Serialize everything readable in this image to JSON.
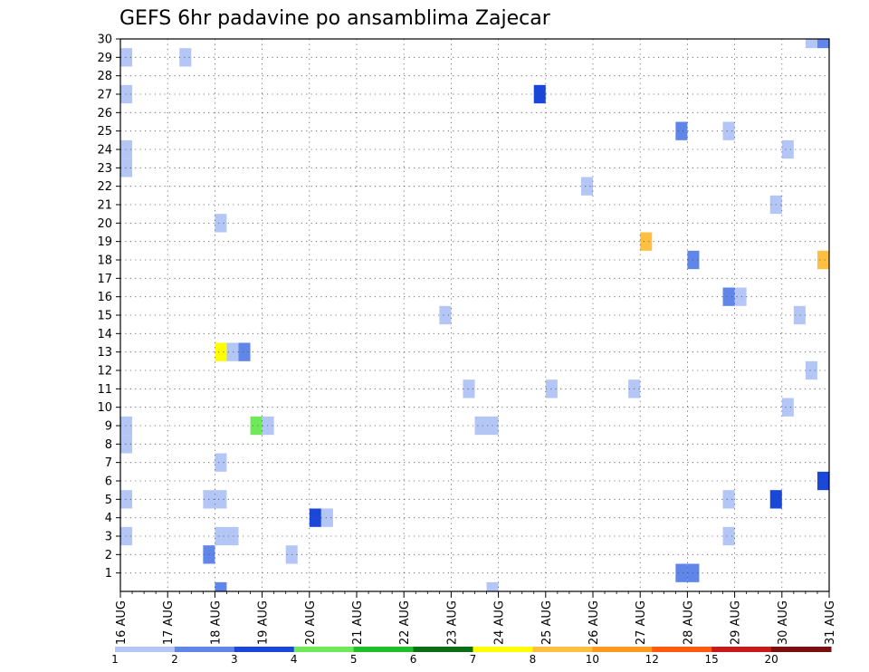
{
  "chart_data": {
    "type": "heatmap",
    "title": "GEFS 6hr padavine po ansamblima Zajecar",
    "xlabel": "",
    "ylabel": "",
    "x_tick_labels": [
      "16 AUG",
      "17 AUG",
      "18 AUG",
      "19 AUG",
      "20 AUG",
      "21 AUG",
      "22 AUG",
      "23 AUG",
      "24 AUG",
      "25 AUG",
      "26 AUG",
      "27 AUG",
      "28 AUG",
      "29 AUG",
      "30 AUG",
      "31 AUG"
    ],
    "xlim_days": [
      0,
      15
    ],
    "ylim": [
      0,
      30
    ],
    "y_tick_labels": [
      "1",
      "2",
      "3",
      "4",
      "5",
      "6",
      "7",
      "8",
      "9",
      "10",
      "11",
      "12",
      "13",
      "14",
      "15",
      "16",
      "17",
      "18",
      "19",
      "20",
      "21",
      "22",
      "23",
      "24",
      "25",
      "26",
      "27",
      "28",
      "29",
      "30"
    ],
    "grid": true,
    "colorbar": {
      "tick_labels": [
        "1",
        "2",
        "3",
        "4",
        "5",
        "6",
        "7",
        "8",
        "10",
        "12",
        "15",
        "20"
      ],
      "colors": [
        "#b3c6f5",
        "#5f86e8",
        "#1b47d8",
        "#6fe85a",
        "#1fbf2a",
        "#0a6e14",
        "#ffff00",
        "#ffbf40",
        "#ff9a20",
        "#ff5a10",
        "#c81a1a",
        "#7a0f0f"
      ]
    },
    "cells": [
      {
        "day": 0.0,
        "member": 29,
        "level": 1
      },
      {
        "day": 1.25,
        "member": 29,
        "level": 1
      },
      {
        "day": 0.0,
        "member": 27,
        "level": 1
      },
      {
        "day": 0.0,
        "member": 24,
        "level": 1
      },
      {
        "day": 0.0,
        "member": 23,
        "level": 1
      },
      {
        "day": 0.0,
        "member": 9,
        "level": 1
      },
      {
        "day": 0.0,
        "member": 8,
        "level": 1
      },
      {
        "day": 0.0,
        "member": 5,
        "level": 1
      },
      {
        "day": 0.0,
        "member": 3,
        "level": 1
      },
      {
        "day": 2.0,
        "member": 20,
        "level": 1
      },
      {
        "day": 2.0,
        "member": 13,
        "level": 7
      },
      {
        "day": 2.25,
        "member": 13,
        "level": 1
      },
      {
        "day": 2.5,
        "member": 13,
        "level": 2
      },
      {
        "day": 2.0,
        "member": 7,
        "level": 1
      },
      {
        "day": 1.75,
        "member": 5,
        "level": 1
      },
      {
        "day": 2.0,
        "member": 5,
        "level": 1
      },
      {
        "day": 2.0,
        "member": 3,
        "level": 1
      },
      {
        "day": 2.25,
        "member": 3,
        "level": 1
      },
      {
        "day": 1.75,
        "member": 2,
        "level": 2
      },
      {
        "day": 2.0,
        "member": 0,
        "level": 2
      },
      {
        "day": 2.75,
        "member": 9,
        "level": 4
      },
      {
        "day": 3.0,
        "member": 9,
        "level": 1
      },
      {
        "day": 3.5,
        "member": 2,
        "level": 1
      },
      {
        "day": 4.0,
        "member": 4,
        "level": 3
      },
      {
        "day": 4.25,
        "member": 4,
        "level": 1
      },
      {
        "day": 6.75,
        "member": 15,
        "level": 1
      },
      {
        "day": 7.25,
        "member": 11,
        "level": 1
      },
      {
        "day": 7.5,
        "member": 9,
        "level": 1
      },
      {
        "day": 7.75,
        "member": 9,
        "level": 1
      },
      {
        "day": 7.75,
        "member": 0,
        "level": 1
      },
      {
        "day": 8.75,
        "member": 27,
        "level": 3
      },
      {
        "day": 9.0,
        "member": 11,
        "level": 1
      },
      {
        "day": 9.75,
        "member": 22,
        "level": 1
      },
      {
        "day": 10.75,
        "member": 11,
        "level": 1
      },
      {
        "day": 11.0,
        "member": 19,
        "level": 8
      },
      {
        "day": 11.75,
        "member": 25,
        "level": 2
      },
      {
        "day": 12.0,
        "member": 18,
        "level": 2
      },
      {
        "day": 11.75,
        "member": 1,
        "level": 2
      },
      {
        "day": 12.0,
        "member": 1,
        "level": 2
      },
      {
        "day": 12.75,
        "member": 25,
        "level": 1
      },
      {
        "day": 12.75,
        "member": 16,
        "level": 2
      },
      {
        "day": 13.0,
        "member": 16,
        "level": 1
      },
      {
        "day": 12.75,
        "member": 5,
        "level": 1
      },
      {
        "day": 12.75,
        "member": 3,
        "level": 1
      },
      {
        "day": 13.75,
        "member": 21,
        "level": 1
      },
      {
        "day": 13.75,
        "member": 5,
        "level": 3
      },
      {
        "day": 14.0,
        "member": 24,
        "level": 1
      },
      {
        "day": 14.0,
        "member": 10,
        "level": 1
      },
      {
        "day": 14.25,
        "member": 15,
        "level": 1
      },
      {
        "day": 14.5,
        "member": 12,
        "level": 1
      },
      {
        "day": 14.5,
        "member": 30,
        "level": 1
      },
      {
        "day": 14.75,
        "member": 30,
        "level": 2
      },
      {
        "day": 14.75,
        "member": 18,
        "level": 8
      },
      {
        "day": 14.75,
        "member": 6,
        "level": 3
      }
    ]
  }
}
